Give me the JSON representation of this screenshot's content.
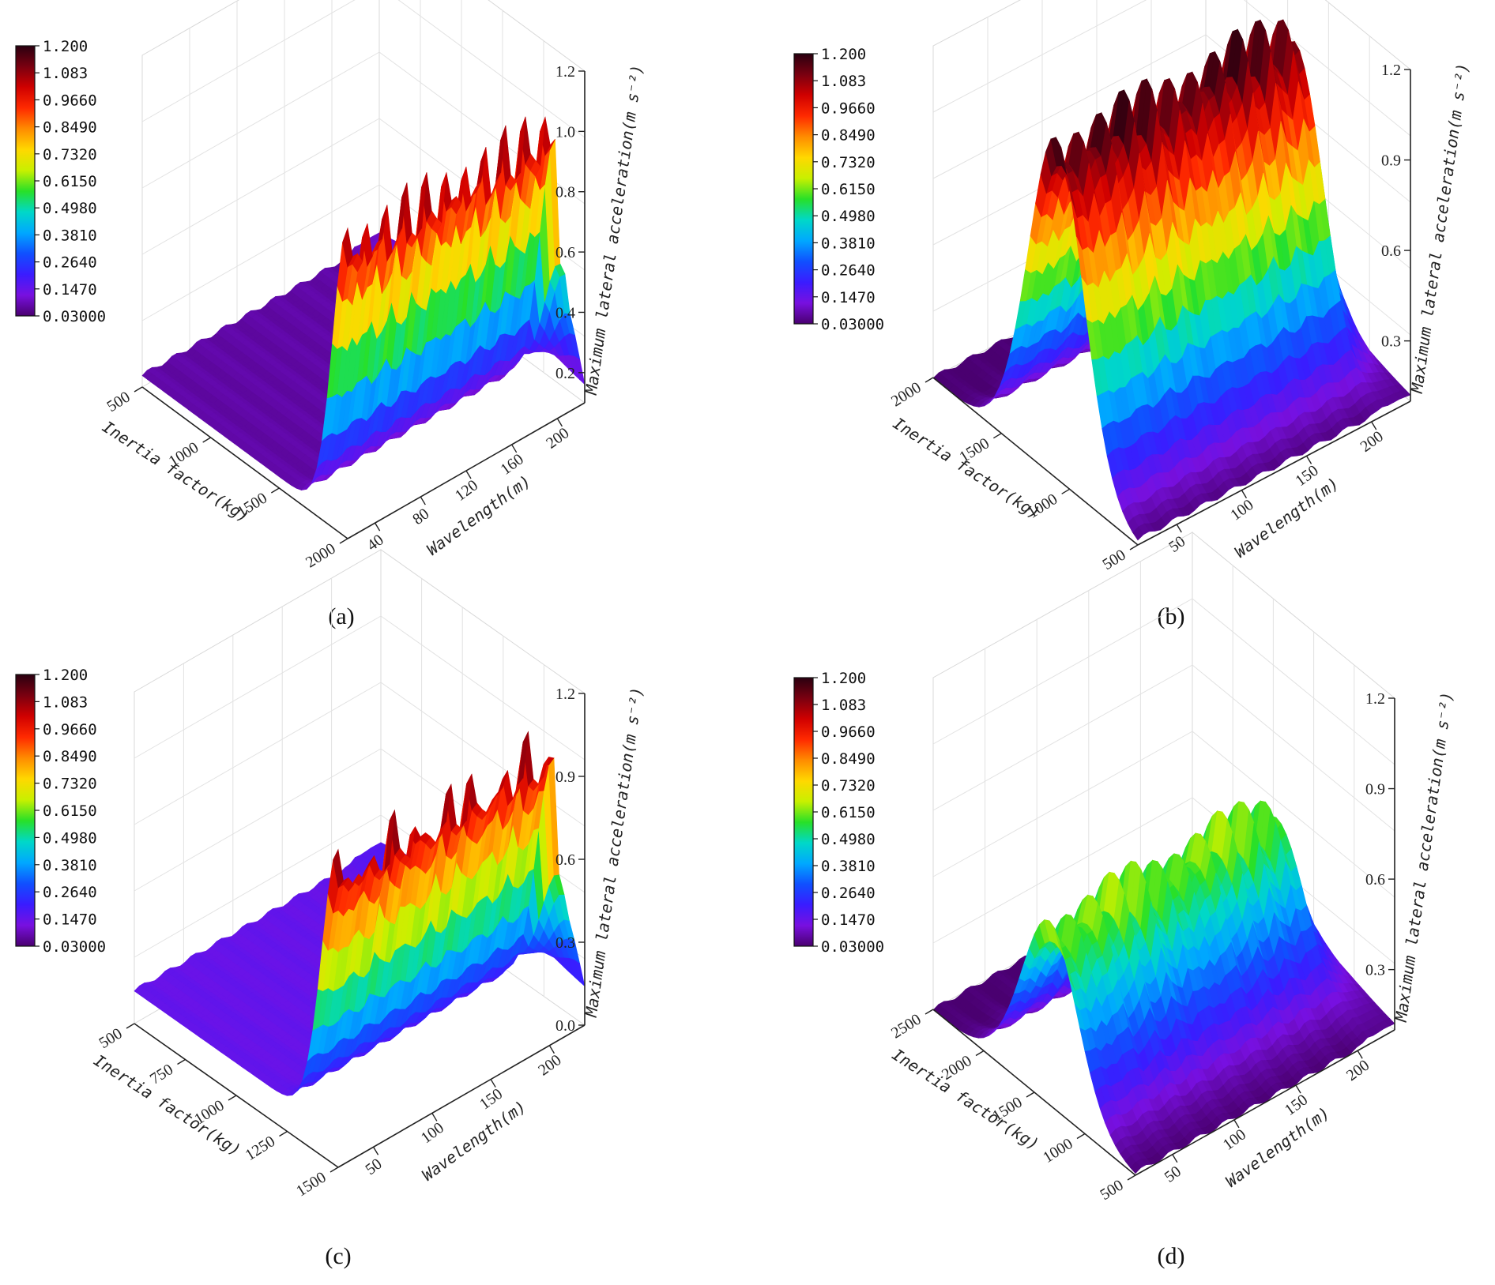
{
  "figure": {
    "colorbar_ticks": [
      "1.200",
      "1.083",
      "0.9660",
      "0.8490",
      "0.7320",
      "0.6150",
      "0.4980",
      "0.3810",
      "0.2640",
      "0.1470",
      "0.03000"
    ],
    "colormap": [
      "#2a0010",
      "#7a0010",
      "#d00000",
      "#ff2a00",
      "#ff8c00",
      "#ffd800",
      "#c8f000",
      "#28e028",
      "#00d8c8",
      "#00a8ff",
      "#1050ff",
      "#3a1cff",
      "#7810e0",
      "#4a0070"
    ]
  },
  "chart_data": [
    {
      "id": "a",
      "type": "surface3d",
      "panel_label": "(a)",
      "xlabel": "Inertia factor(kg)",
      "ylabel": "Wavelength(m)",
      "zlabel": "Maximum lateral acceleration(m s⁻²)",
      "x_ticks": [
        "500",
        "1000",
        "1500",
        "2000"
      ],
      "y_ticks": [
        "40",
        "80",
        "120",
        "160",
        "200"
      ],
      "z_ticks": [
        "0.2",
        "0.4",
        "0.6",
        "0.8",
        "1.0",
        "1.2"
      ],
      "xlim": [
        500,
        2000
      ],
      "ylim": [
        20,
        200
      ],
      "zlim": [
        0.1,
        1.2
      ],
      "x_from_front": false,
      "surface": {
        "base": 0.14,
        "ridge_height": 0.86,
        "ridge_center": 500,
        "ridge_width": 160,
        "spikes": 12,
        "spike_amp": 0.14,
        "low_wavelength_dip": true
      }
    },
    {
      "id": "b",
      "type": "surface3d",
      "panel_label": "(b)",
      "xlabel": "Inertia factor(kg)",
      "ylabel": "Wavelength(m)",
      "zlabel": "Maximum lateral acceleration(m s⁻²)",
      "x_ticks": [
        "500",
        "1000",
        "1500",
        "2000"
      ],
      "y_ticks": [
        "50",
        "100",
        "150",
        "200"
      ],
      "z_ticks": [
        "0.3",
        "0.6",
        "0.9",
        "1.2"
      ],
      "xlim": [
        500,
        2000
      ],
      "ylim": [
        20,
        200
      ],
      "zlim": [
        0.1,
        1.2
      ],
      "x_from_front": true,
      "surface": {
        "base": 0.1,
        "ridge_height": 1.0,
        "ridge_center": 1100,
        "ridge_width": 300,
        "spikes": 12,
        "spike_amp": 0.14,
        "low_wavelength_dip": true
      }
    },
    {
      "id": "c",
      "type": "surface3d",
      "panel_label": "(c)",
      "xlabel": "Inertia factor(kg)",
      "ylabel": "Wavelength(m)",
      "zlabel": "Maximum lateral acceleration(m s⁻²)",
      "x_ticks": [
        "500",
        "750",
        "1000",
        "1250",
        "1500"
      ],
      "y_ticks": [
        "50",
        "100",
        "150",
        "200"
      ],
      "z_ticks": [
        "0.0",
        "0.3",
        "0.6",
        "0.9",
        "1.2"
      ],
      "xlim": [
        500,
        1500
      ],
      "ylim": [
        20,
        200
      ],
      "zlim": [
        0.0,
        1.2
      ],
      "x_from_front": false,
      "surface": {
        "base": 0.12,
        "ridge_height": 0.88,
        "ridge_center": 500,
        "ridge_width": 120,
        "spikes": 13,
        "spike_amp": 0.16,
        "low_wavelength_dip": true
      }
    },
    {
      "id": "d",
      "type": "surface3d",
      "panel_label": "(d)",
      "xlabel": "Inertia factor(kg)",
      "ylabel": "Wavelength(m)",
      "zlabel": "Maximum lateral acceleration(m s⁻²)",
      "x_ticks": [
        "500",
        "1000",
        "1500",
        "2000",
        "2500"
      ],
      "y_ticks": [
        "50",
        "100",
        "150",
        "200"
      ],
      "z_ticks": [
        "0.3",
        "0.6",
        "0.9",
        "1.2"
      ],
      "xlim": [
        500,
        2500
      ],
      "ylim": [
        20,
        200
      ],
      "zlim": [
        0.1,
        1.2
      ],
      "x_from_front": true,
      "surface": {
        "base": 0.1,
        "ridge_height": 0.5,
        "ridge_center": 1350,
        "ridge_width": 420,
        "spikes": 12,
        "spike_amp": 0.12,
        "low_wavelength_dip": true
      }
    }
  ]
}
